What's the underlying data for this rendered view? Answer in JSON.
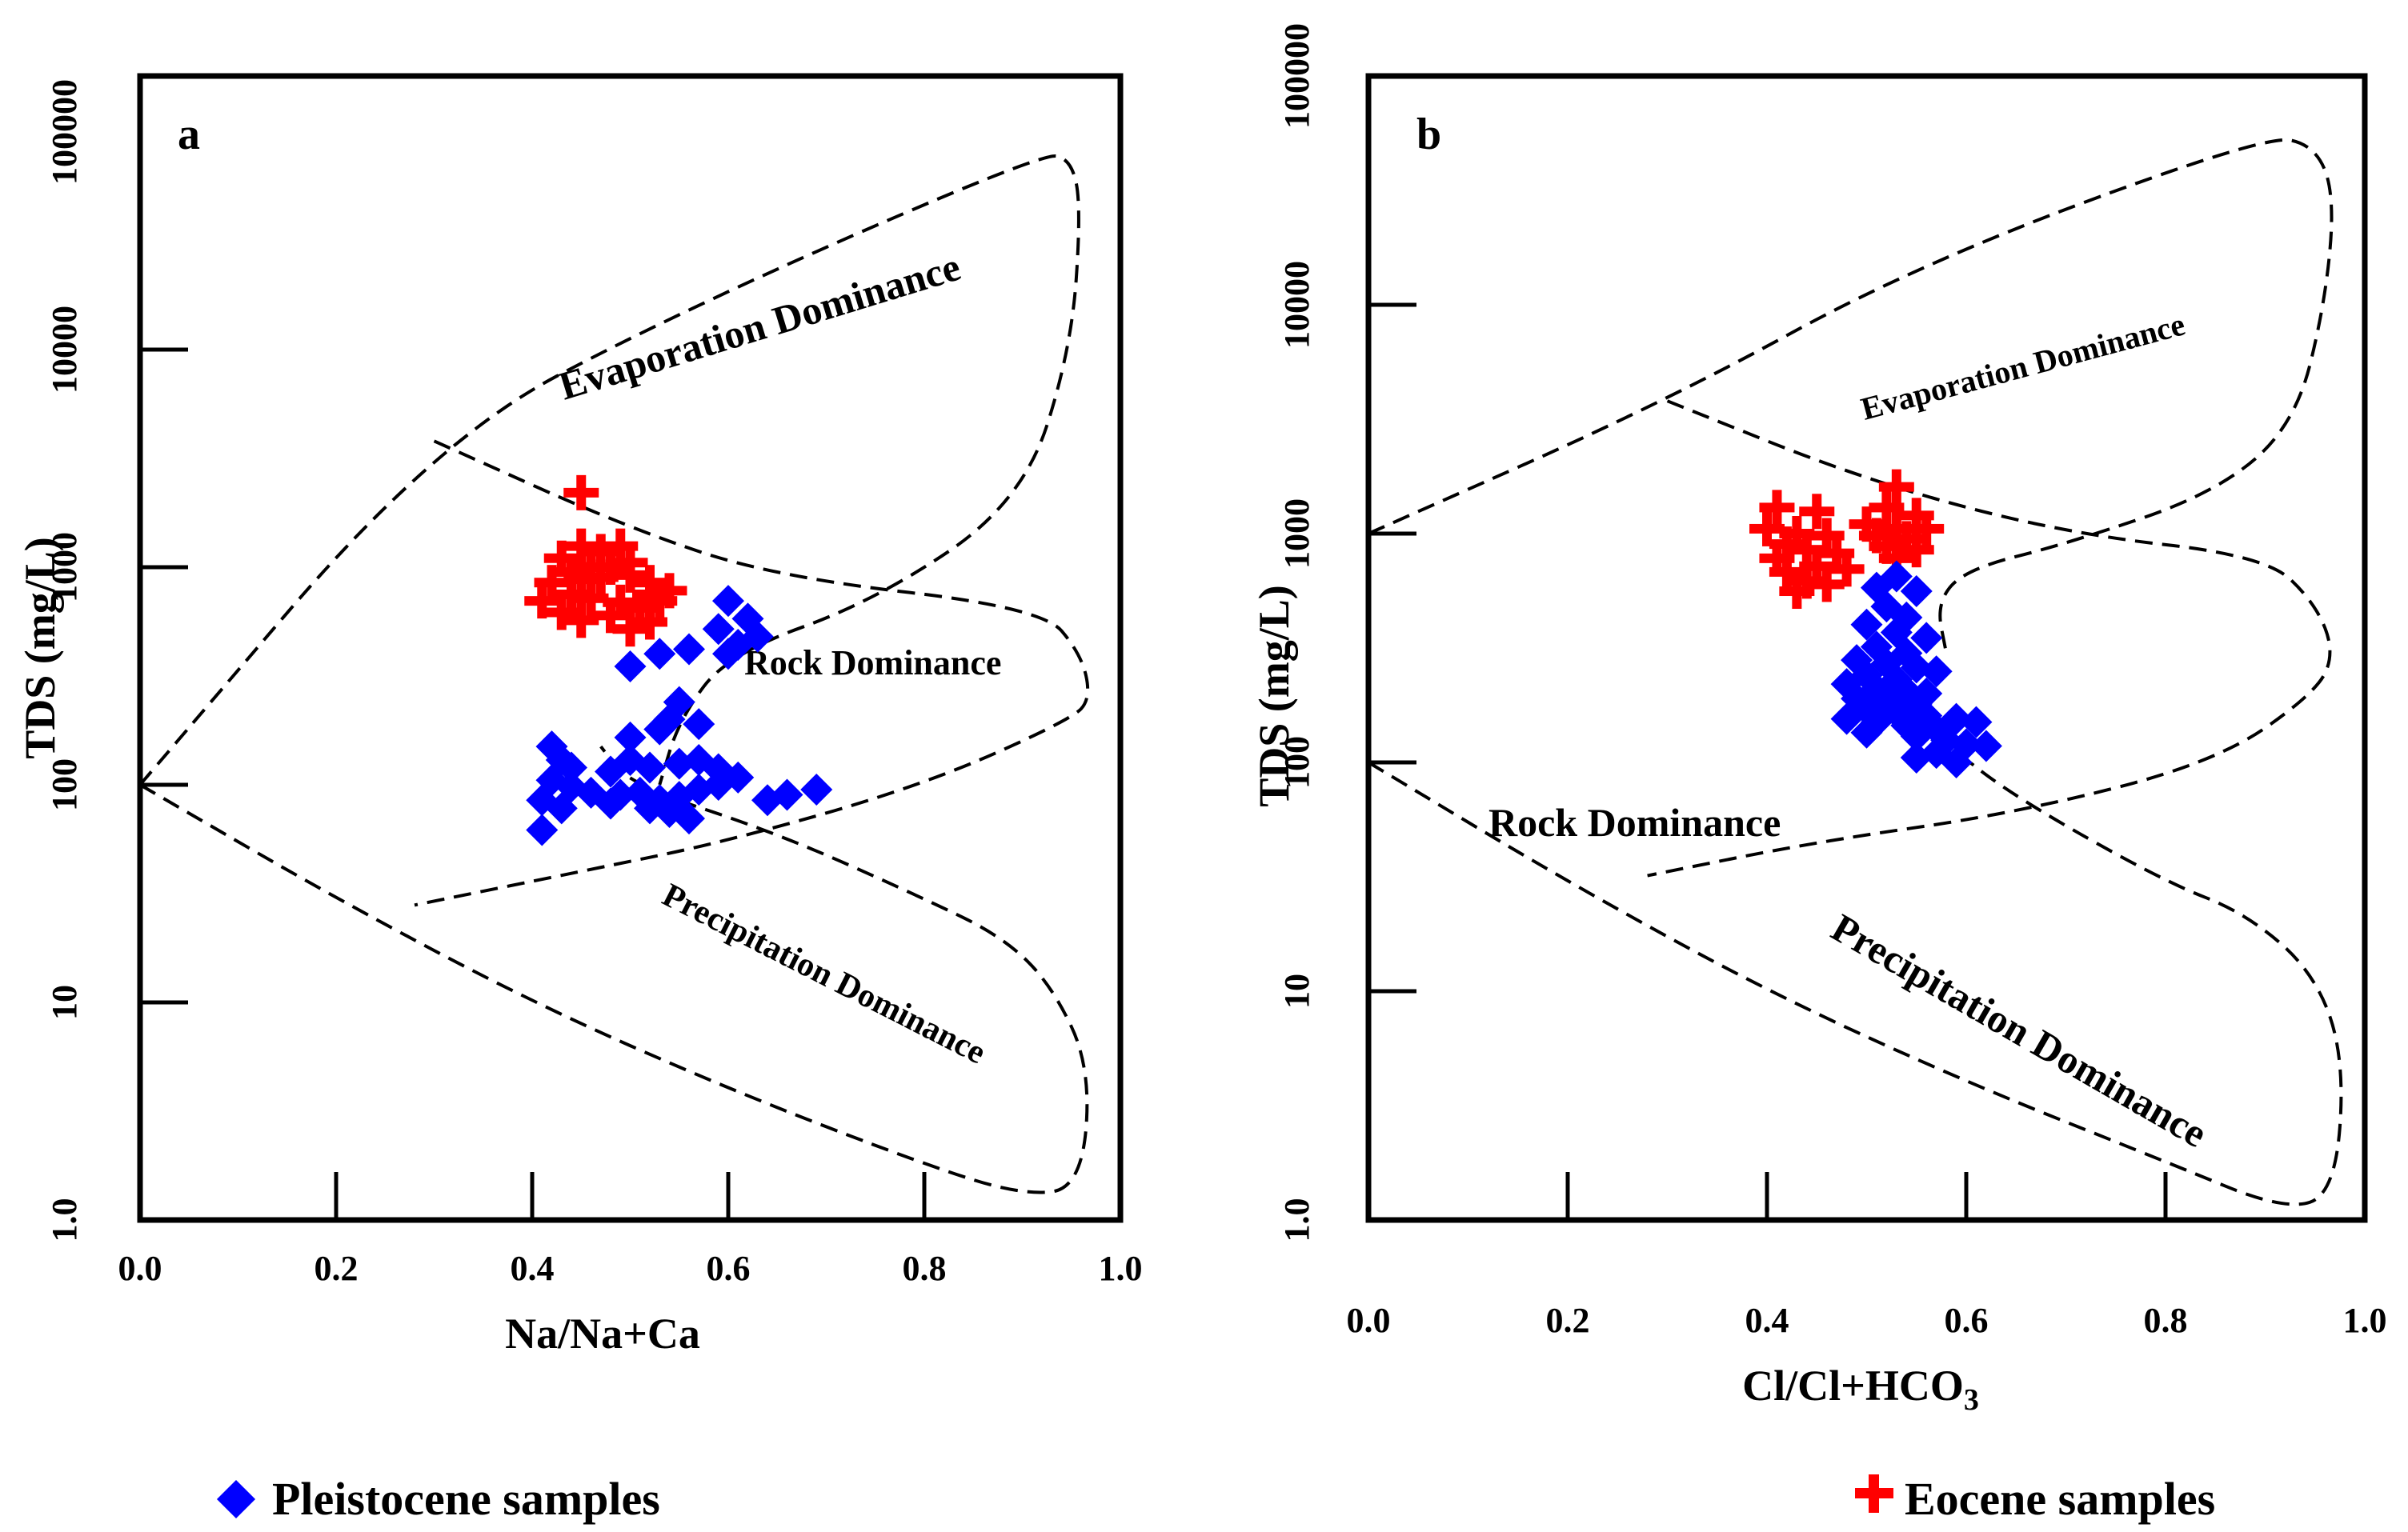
{
  "chart_data": [
    {
      "type": "scatter",
      "panel": "a",
      "xlabel": "Na/Na+Ca",
      "ylabel": "TDS (mg/L)",
      "xlim": [
        0,
        1
      ],
      "ylim": [
        1,
        100000
      ],
      "yscale": "log",
      "x_ticks": [
        "0.0",
        "0.2",
        "0.4",
        "0.6",
        "0.8",
        "1.0"
      ],
      "y_ticks": [
        "1.0",
        "10",
        "100",
        "1000",
        "10000",
        "100000"
      ],
      "regions": [
        {
          "label": "Evaporation Dominance"
        },
        {
          "label": "Rock Dominance"
        },
        {
          "label": "Precipitation Dominance"
        }
      ],
      "region_boundaries": {
        "top_curve": [
          [
            0.0,
            100
          ],
          [
            0.3,
            3800
          ],
          [
            0.55,
            15000
          ],
          [
            0.92,
            80000
          ],
          [
            0.95,
            75000
          ],
          [
            0.96,
            45000
          ],
          [
            0.95,
            10000
          ],
          [
            0.9,
            2000
          ],
          [
            0.75,
            700
          ],
          [
            0.6,
            400
          ],
          [
            0.55,
            200
          ],
          [
            0.53,
            100
          ]
        ],
        "middle_curve": [
          [
            0.3,
            3800
          ],
          [
            0.5,
            1500
          ],
          [
            0.65,
            900
          ],
          [
            0.92,
            650
          ],
          [
            0.96,
            400
          ],
          [
            0.97,
            250
          ],
          [
            0.95,
            200
          ],
          [
            0.8,
            100
          ],
          [
            0.6,
            55
          ],
          [
            0.45,
            40
          ],
          [
            0.28,
            28
          ]
        ],
        "bottom_curve": [
          [
            0.0,
            100
          ],
          [
            0.2,
            30
          ],
          [
            0.4,
            10
          ],
          [
            0.6,
            4
          ],
          [
            0.8,
            1.8
          ],
          [
            0.9,
            1.3
          ],
          [
            0.96,
            1.4
          ],
          [
            0.97,
            5
          ],
          [
            0.93,
            12
          ],
          [
            0.88,
            20
          ],
          [
            0.8,
            30
          ],
          [
            0.65,
            60
          ],
          [
            0.5,
            100
          ],
          [
            0.47,
            150
          ]
        ]
      },
      "series": [
        {
          "name": "Eocene samples",
          "marker": "cross",
          "color": "#ff0000",
          "points": [
            [
              0.45,
              2200
            ],
            [
              0.43,
              1100
            ],
            [
              0.45,
              1250
            ],
            [
              0.47,
              1180
            ],
            [
              0.49,
              1250
            ],
            [
              0.44,
              950
            ],
            [
              0.46,
              1000
            ],
            [
              0.48,
              1000
            ],
            [
              0.5,
              1050
            ],
            [
              0.42,
              850
            ],
            [
              0.45,
              880
            ],
            [
              0.47,
              900
            ],
            [
              0.5,
              920
            ],
            [
              0.52,
              850
            ],
            [
              0.41,
              700
            ],
            [
              0.44,
              750
            ],
            [
              0.46,
              720
            ],
            [
              0.49,
              690
            ],
            [
              0.52,
              750
            ],
            [
              0.54,
              780
            ],
            [
              0.43,
              620
            ],
            [
              0.48,
              600
            ],
            [
              0.51,
              650
            ],
            [
              0.53,
              700
            ],
            [
              0.45,
              570
            ],
            [
              0.52,
              560
            ],
            [
              0.5,
              520
            ]
          ]
        },
        {
          "name": "Pleistocene samples",
          "marker": "diamond",
          "color": "#0000ff",
          "points": [
            [
              0.6,
              700
            ],
            [
              0.62,
              580
            ],
            [
              0.59,
              520
            ],
            [
              0.63,
              480
            ],
            [
              0.61,
              440
            ],
            [
              0.6,
              400
            ],
            [
              0.56,
              420
            ],
            [
              0.53,
              400
            ],
            [
              0.5,
              350
            ],
            [
              0.55,
              240
            ],
            [
              0.54,
              200
            ],
            [
              0.57,
              190
            ],
            [
              0.53,
              180
            ],
            [
              0.5,
              165
            ],
            [
              0.42,
              150
            ],
            [
              0.44,
              120
            ],
            [
              0.43,
              130
            ],
            [
              0.48,
              115
            ],
            [
              0.5,
              130
            ],
            [
              0.52,
              120
            ],
            [
              0.55,
              125
            ],
            [
              0.57,
              130
            ],
            [
              0.59,
              118
            ],
            [
              0.61,
              108
            ],
            [
              0.42,
              105
            ],
            [
              0.44,
              98
            ],
            [
              0.46,
              92
            ],
            [
              0.49,
              90
            ],
            [
              0.51,
              92
            ],
            [
              0.53,
              85
            ],
            [
              0.55,
              88
            ],
            [
              0.57,
              95
            ],
            [
              0.59,
              100
            ],
            [
              0.64,
              85
            ],
            [
              0.66,
              90
            ],
            [
              0.69,
              95
            ],
            [
              0.41,
              85
            ],
            [
              0.43,
              78
            ],
            [
              0.48,
              82
            ],
            [
              0.52,
              78
            ],
            [
              0.54,
              75
            ],
            [
              0.56,
              70
            ],
            [
              0.41,
              62
            ]
          ]
        }
      ]
    },
    {
      "type": "scatter",
      "panel": "b",
      "xlabel": "Cl/Cl+HCO",
      "xlabel_subscript": "3",
      "ylabel": "TDS (mg/L)",
      "xlim": [
        0,
        1
      ],
      "ylim": [
        1,
        100000
      ],
      "yscale": "log",
      "x_ticks": [
        "0.0",
        "0.2",
        "0.4",
        "0.6",
        "0.8",
        "1.0"
      ],
      "y_ticks": [
        "1.0",
        "10",
        "100",
        "1000",
        "10000",
        "100000"
      ],
      "regions": [
        {
          "label": "Evaporation Dominance"
        },
        {
          "label": "Rock Dominance"
        },
        {
          "label": "Precipitation Dominance"
        }
      ],
      "region_boundaries": {
        "top_curve": [
          [
            0.0,
            1000
          ],
          [
            0.3,
            3800
          ],
          [
            0.55,
            15000
          ],
          [
            0.9,
            55000
          ],
          [
            0.95,
            50000
          ],
          [
            0.97,
            30000
          ],
          [
            0.96,
            10000
          ],
          [
            0.93,
            3000
          ],
          [
            0.85,
            1500
          ],
          [
            0.7,
            900
          ],
          [
            0.6,
            700
          ],
          [
            0.57,
            500
          ],
          [
            0.58,
            300
          ]
        ],
        "middle_curve": [
          [
            0.3,
            3800
          ],
          [
            0.5,
            1700
          ],
          [
            0.7,
            1000
          ],
          [
            0.9,
            800
          ],
          [
            0.95,
            500
          ],
          [
            0.97,
            300
          ],
          [
            0.95,
            200
          ],
          [
            0.85,
            100
          ],
          [
            0.65,
            60
          ],
          [
            0.45,
            45
          ],
          [
            0.28,
            32
          ]
        ],
        "bottom_curve": [
          [
            0.0,
            100
          ],
          [
            0.2,
            30
          ],
          [
            0.4,
            10
          ],
          [
            0.6,
            4
          ],
          [
            0.8,
            1.8
          ],
          [
            0.92,
            1.1
          ],
          [
            0.97,
            1.3
          ],
          [
            0.98,
            5
          ],
          [
            0.95,
            12
          ],
          [
            0.88,
            22
          ],
          [
            0.8,
            30
          ],
          [
            0.65,
            70
          ],
          [
            0.58,
            120
          ]
        ]
      },
      "series": [
        {
          "name": "Eocene samples",
          "marker": "cross",
          "color": "#ff0000",
          "points": [
            [
              0.41,
              1300
            ],
            [
              0.45,
              1250
            ],
            [
              0.4,
              1050
            ],
            [
              0.43,
              1000
            ],
            [
              0.46,
              980
            ],
            [
              0.42,
              900
            ],
            [
              0.44,
              850
            ],
            [
              0.47,
              820
            ],
            [
              0.41,
              780
            ],
            [
              0.45,
              720
            ],
            [
              0.48,
              700
            ],
            [
              0.42,
              680
            ],
            [
              0.44,
              620
            ],
            [
              0.46,
              600
            ],
            [
              0.43,
              560
            ],
            [
              0.53,
              1600
            ],
            [
              0.52,
              1300
            ],
            [
              0.55,
              1200
            ],
            [
              0.5,
              1100
            ],
            [
              0.53,
              1050
            ],
            [
              0.56,
              1050
            ],
            [
              0.51,
              980
            ],
            [
              0.54,
              950
            ],
            [
              0.52,
              880
            ],
            [
              0.55,
              850
            ],
            [
              0.53,
              780
            ]
          ]
        },
        {
          "name": "Pleistocene samples",
          "marker": "diamond",
          "color": "#0000ff",
          "points": [
            [
              0.53,
              650
            ],
            [
              0.51,
              580
            ],
            [
              0.55,
              560
            ],
            [
              0.52,
              480
            ],
            [
              0.54,
              430
            ],
            [
              0.5,
              400
            ],
            [
              0.53,
              370
            ],
            [
              0.56,
              350
            ],
            [
              0.51,
              320
            ],
            [
              0.54,
              300
            ],
            [
              0.49,
              280
            ],
            [
              0.52,
              270
            ],
            [
              0.55,
              260
            ],
            [
              0.57,
              250
            ],
            [
              0.5,
              240
            ],
            [
              0.53,
              230
            ],
            [
              0.48,
              220
            ],
            [
              0.51,
              210
            ],
            [
              0.54,
              205
            ],
            [
              0.56,
              200
            ],
            [
              0.49,
              190
            ],
            [
              0.52,
              185
            ],
            [
              0.55,
              180
            ],
            [
              0.5,
              170
            ],
            [
              0.53,
              165
            ],
            [
              0.56,
              160
            ],
            [
              0.48,
              155
            ],
            [
              0.51,
              150
            ],
            [
              0.54,
              145
            ],
            [
              0.57,
              140
            ],
            [
              0.5,
              135
            ],
            [
              0.55,
              130
            ],
            [
              0.58,
              125
            ],
            [
              0.59,
              155
            ],
            [
              0.61,
              150
            ],
            [
              0.6,
              120
            ],
            [
              0.62,
              118
            ],
            [
              0.57,
              110
            ],
            [
              0.59,
              100
            ],
            [
              0.55,
              105
            ]
          ]
        }
      ]
    }
  ],
  "legend": {
    "pleistocene_label": "Pleistocene samples",
    "eocene_label": "Eocene samples"
  }
}
